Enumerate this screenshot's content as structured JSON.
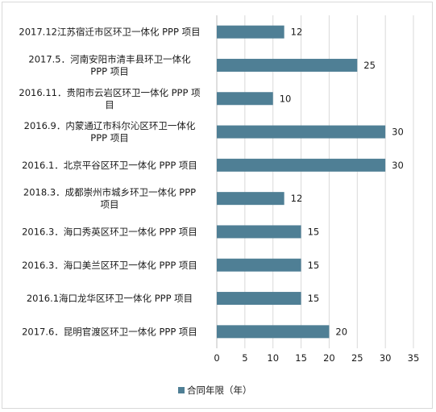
{
  "chart_data": {
    "type": "bar",
    "orientation": "horizontal",
    "categories": [
      [
        "2017.12江苏宿迁市区环卫一体化 PPP 项目"
      ],
      [
        "2017.5．河南安阳市清丰县环卫一体化",
        "PPP 项目"
      ],
      [
        "2016.11．贵阳市云岩区环卫一体化 PPP 项",
        "目"
      ],
      [
        "2016.9．内蒙通辽市科尔沁区环卫一体化",
        "PPP 项目"
      ],
      [
        "2016.1．北京平谷区环卫一体化 PPP 项目"
      ],
      [
        "2018.3．成都崇州市城乡环卫一体化 PPP",
        "项目"
      ],
      [
        "2016.3．海口秀英区环卫一体化 PPP 项目"
      ],
      [
        "2016.3．海口美兰区环卫一体化 PPP 项目"
      ],
      [
        "2016.1海口龙华区环卫一体化 PPP 项目"
      ],
      [
        "2017.6．昆明官渡区环卫一体化 PPP 项目"
      ]
    ],
    "series": [
      {
        "name": "合同年限（年）",
        "values": [
          12,
          25,
          10,
          30,
          30,
          12,
          15,
          15,
          15,
          20
        ]
      }
    ],
    "xlim": [
      0,
      35
    ],
    "xticks": [
      0,
      5,
      10,
      15,
      20,
      25,
      30,
      35
    ],
    "grid": "vertical",
    "legend": "bottom",
    "bar_color": "#4f7f95"
  }
}
